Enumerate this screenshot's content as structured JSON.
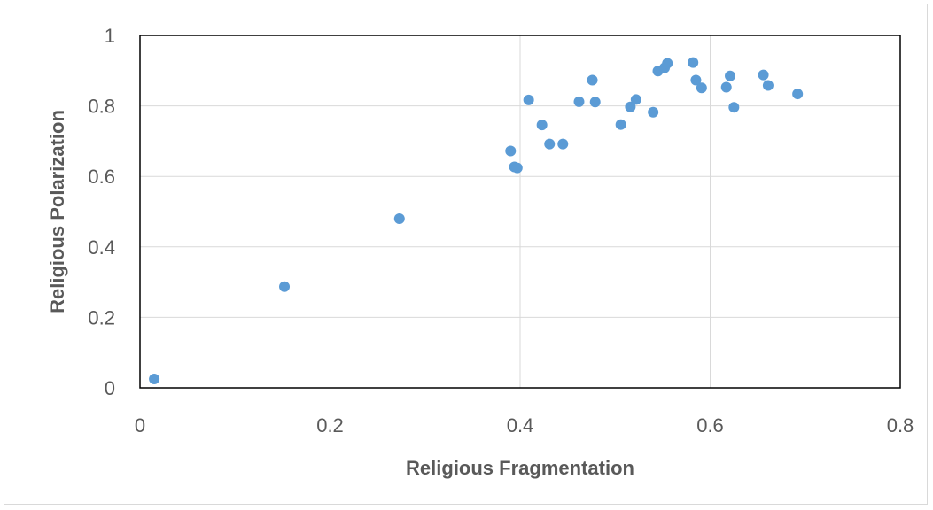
{
  "chart_data": {
    "type": "scatter",
    "xlabel": "Religious Fragmentation",
    "ylabel": "Religious Polarization",
    "xlim": [
      0,
      0.8
    ],
    "ylim": [
      0,
      1
    ],
    "x_ticks": [
      "0",
      "0.2",
      "0.4",
      "0.6",
      "0.8"
    ],
    "y_ticks": [
      "0",
      "0.2",
      "0.4",
      "0.6",
      "0.8",
      "1"
    ],
    "grid": true,
    "legend": "none",
    "marker_color": "#5b9bd5",
    "points": [
      {
        "x": 0.015,
        "y": 0.025
      },
      {
        "x": 0.152,
        "y": 0.287
      },
      {
        "x": 0.273,
        "y": 0.48
      },
      {
        "x": 0.39,
        "y": 0.672
      },
      {
        "x": 0.394,
        "y": 0.627
      },
      {
        "x": 0.397,
        "y": 0.624
      },
      {
        "x": 0.409,
        "y": 0.817
      },
      {
        "x": 0.423,
        "y": 0.746
      },
      {
        "x": 0.431,
        "y": 0.692
      },
      {
        "x": 0.445,
        "y": 0.692
      },
      {
        "x": 0.462,
        "y": 0.812
      },
      {
        "x": 0.476,
        "y": 0.873
      },
      {
        "x": 0.479,
        "y": 0.811
      },
      {
        "x": 0.506,
        "y": 0.747
      },
      {
        "x": 0.516,
        "y": 0.797
      },
      {
        "x": 0.522,
        "y": 0.818
      },
      {
        "x": 0.54,
        "y": 0.782
      },
      {
        "x": 0.545,
        "y": 0.899
      },
      {
        "x": 0.552,
        "y": 0.908
      },
      {
        "x": 0.555,
        "y": 0.921
      },
      {
        "x": 0.582,
        "y": 0.923
      },
      {
        "x": 0.585,
        "y": 0.873
      },
      {
        "x": 0.591,
        "y": 0.851
      },
      {
        "x": 0.617,
        "y": 0.853
      },
      {
        "x": 0.621,
        "y": 0.885
      },
      {
        "x": 0.625,
        "y": 0.796
      },
      {
        "x": 0.656,
        "y": 0.888
      },
      {
        "x": 0.661,
        "y": 0.858
      },
      {
        "x": 0.692,
        "y": 0.834
      }
    ]
  }
}
